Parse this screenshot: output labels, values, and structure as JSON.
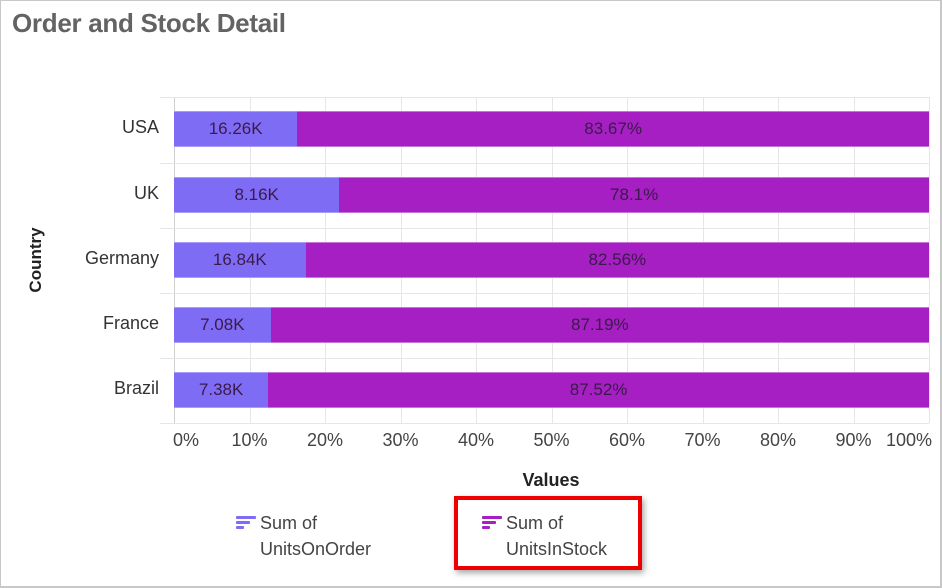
{
  "window": {
    "title": "Order and Stock Detail"
  },
  "chart_data": {
    "type": "bar",
    "orientation": "horizontal",
    "stacking": "100%",
    "title": "Order and Stock Detail",
    "xlabel": "Values",
    "ylabel": "Country",
    "xlim": [
      0,
      100
    ],
    "x_ticks": [
      "0%",
      "10%",
      "20%",
      "30%",
      "40%",
      "50%",
      "60%",
      "70%",
      "80%",
      "90%",
      "100%"
    ],
    "grid": true,
    "legend_position": "bottom",
    "categories": [
      "USA",
      "UK",
      "Germany",
      "France",
      "Brazil"
    ],
    "series": [
      {
        "name": "Sum of UnitsOnOrder",
        "color": "#7f6cf5",
        "share_pct": [
          16.33,
          21.9,
          17.44,
          12.81,
          12.48
        ],
        "data_labels": [
          "16.26K",
          "8.16K",
          "16.84K",
          "7.08K",
          "7.38K"
        ]
      },
      {
        "name": "Sum of UnitsInStock",
        "color": "#a61fc3",
        "share_pct": [
          83.67,
          78.1,
          82.56,
          87.19,
          87.52
        ],
        "data_labels": [
          "83.67%",
          "78.1%",
          "82.56%",
          "87.19%",
          "87.52%"
        ]
      }
    ]
  },
  "legend": {
    "items": [
      {
        "line1": "Sum of",
        "line2": "UnitsOnOrder",
        "color": "#7f6cf5",
        "icon": "bar-chart-icon",
        "highlighted": false
      },
      {
        "line1": "Sum of",
        "line2": "UnitsInStock",
        "color": "#a61fc3",
        "icon": "bar-chart-icon",
        "highlighted": true
      }
    ]
  },
  "highlight_color": "#ee0000"
}
